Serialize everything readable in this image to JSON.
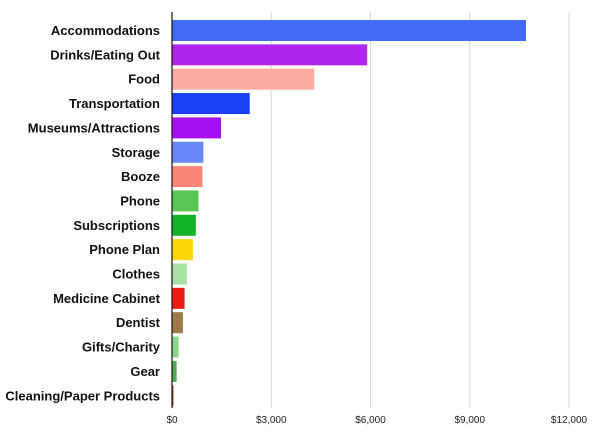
{
  "chart_data": {
    "type": "bar",
    "orientation": "horizontal",
    "title": "",
    "xlabel": "",
    "ylabel": "",
    "xlim": [
      0,
      12000
    ],
    "grid": true,
    "legend": "none",
    "categories": [
      "Accommodations",
      "Drinks/Eating Out",
      "Food",
      "Transportation",
      "Museums/Attractions",
      "Storage",
      "Booze",
      "Phone",
      "Subscriptions",
      "Phone Plan",
      "Clothes",
      "Medicine Cabinet",
      "Dentist",
      "Gifts/Charity",
      "Gear",
      "Cleaning/Paper Products"
    ],
    "values": [
      10700,
      5900,
      4300,
      2350,
      1480,
      950,
      920,
      800,
      720,
      630,
      450,
      380,
      330,
      200,
      140,
      30
    ],
    "colors": [
      "#4169f2",
      "#b026ef",
      "#fbaca1",
      "#1a3ff5",
      "#a80ff0",
      "#6a88f7",
      "#fb8677",
      "#58c653",
      "#12b228",
      "#fbd60b",
      "#a9e0a3",
      "#ea1a0e",
      "#a0784a",
      "#8cd68a",
      "#50aa55",
      "#a0522d"
    ],
    "ticks": [
      {
        "value": 0,
        "label": "$0"
      },
      {
        "value": 3000,
        "label": "$3,000"
      },
      {
        "value": 6000,
        "label": "$6,000"
      },
      {
        "value": 9000,
        "label": "$9,000"
      },
      {
        "value": 12000,
        "label": "$12,000"
      }
    ]
  }
}
